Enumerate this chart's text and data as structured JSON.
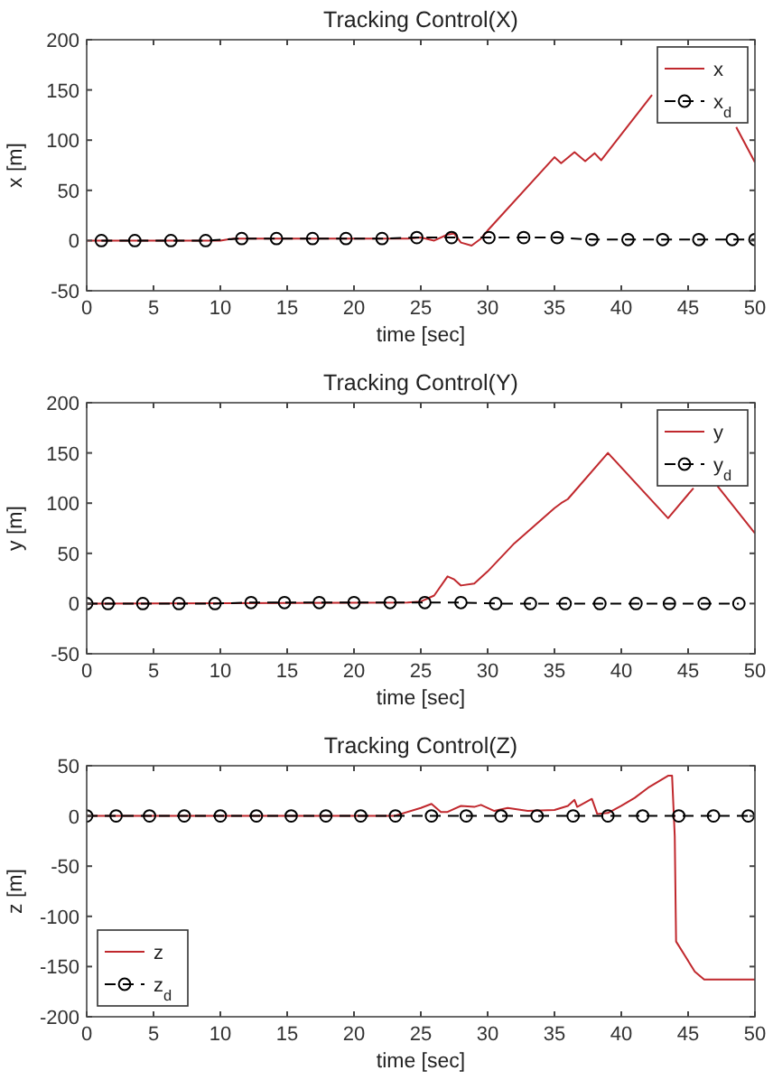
{
  "chart_data": [
    {
      "type": "line",
      "title": "Tracking Control(X)",
      "xlabel": "time [sec]",
      "ylabel": "x [m]",
      "xlim": [
        0,
        50
      ],
      "ylim": [
        -50,
        200
      ],
      "xticks": [
        0,
        5,
        10,
        15,
        20,
        25,
        30,
        35,
        40,
        45,
        50
      ],
      "yticks": [
        -50,
        0,
        50,
        100,
        150,
        200
      ],
      "legend": "top right",
      "series": [
        {
          "name": "x",
          "color": "#c0282d",
          "marker": "none",
          "line_style": "solid",
          "x": [
            0,
            10,
            11,
            24,
            25,
            26,
            27,
            27.5,
            28,
            28.8,
            29.5,
            30,
            35,
            35.5,
            36.5,
            37.3,
            38,
            38.5,
            42.3,
            45,
            48.6,
            50
          ],
          "values": [
            0,
            0,
            2,
            2,
            3,
            0,
            6,
            7,
            -2,
            -5,
            2,
            10,
            83,
            77,
            88,
            79,
            87,
            80,
            145,
            null,
            113,
            78
          ]
        },
        {
          "name": "x$_{d}$",
          "color": "#000000",
          "marker": "circle",
          "line_style": "dashed",
          "x": [
            1.1,
            3.6,
            6.3,
            8.9,
            11.6,
            14.2,
            16.9,
            19.4,
            22.1,
            24.7,
            27.3,
            30.1,
            32.7,
            35.2,
            37.8,
            40.5,
            43.1,
            45.8,
            48.3,
            50
          ],
          "values": [
            0,
            0,
            0,
            0,
            2,
            2,
            2,
            2,
            2,
            3,
            3,
            3,
            3,
            3,
            1,
            1,
            1,
            1,
            1,
            1
          ]
        }
      ]
    },
    {
      "type": "line",
      "title": "Tracking Control(Y)",
      "xlabel": "time [sec]",
      "ylabel": "y [m]",
      "xlim": [
        0,
        50
      ],
      "ylim": [
        -50,
        200
      ],
      "xticks": [
        0,
        5,
        10,
        15,
        20,
        25,
        30,
        35,
        40,
        45,
        50
      ],
      "yticks": [
        -50,
        0,
        50,
        100,
        150,
        200
      ],
      "legend": "top right",
      "series": [
        {
          "name": "y",
          "color": "#c0282d",
          "marker": "none",
          "line_style": "solid",
          "x": [
            0,
            24,
            25,
            26,
            27,
            27.5,
            28,
            29,
            30,
            32,
            35,
            35.5,
            36,
            39,
            43.5,
            45.4,
            46.2,
            47.2,
            50
          ],
          "values": [
            0,
            1,
            2,
            8,
            27,
            24,
            18,
            20,
            32,
            60,
            95,
            100,
            104,
            150,
            85,
            115,
            null,
            117,
            70
          ]
        },
        {
          "name": "y$_{d}$",
          "color": "#000000",
          "marker": "circle",
          "line_style": "dashed",
          "x": [
            0,
            1.6,
            4.2,
            6.9,
            9.6,
            12.3,
            14.8,
            17.4,
            20,
            22.7,
            25.3,
            28,
            30.6,
            33.2,
            35.8,
            38.4,
            41.1,
            43.6,
            46.2,
            48.8
          ],
          "values": [
            0,
            0,
            0,
            0,
            0,
            1,
            1,
            1,
            1,
            1,
            1,
            1,
            0,
            0,
            0,
            0,
            0,
            0,
            0,
            0
          ]
        }
      ]
    },
    {
      "type": "line",
      "title": "Tracking Control(Z)",
      "xlabel": "time [sec]",
      "ylabel": "z [m]",
      "xlim": [
        0,
        50
      ],
      "ylim": [
        -200,
        50
      ],
      "xticks": [
        0,
        5,
        10,
        15,
        20,
        25,
        30,
        35,
        40,
        45,
        50
      ],
      "yticks": [
        -200,
        -150,
        -100,
        -50,
        0,
        50
      ],
      "legend": "bottom left",
      "series": [
        {
          "name": "z",
          "color": "#c0282d",
          "marker": "none",
          "line_style": "solid",
          "x": [
            0,
            23,
            25,
            25.8,
            26.5,
            27,
            28,
            29,
            29.5,
            30.5,
            31.5,
            33,
            35,
            36,
            36.5,
            36.7,
            37.8,
            38.2,
            39,
            40,
            41,
            42,
            43.5,
            43.8,
            44,
            44.1,
            44.8,
            45.5,
            46.2,
            50
          ],
          "values": [
            0,
            0,
            8,
            12,
            4,
            4,
            10,
            9,
            11,
            5,
            8,
            5,
            6,
            10,
            16,
            9,
            17,
            2,
            3,
            10,
            18,
            28,
            40,
            40,
            -20,
            -125,
            -140,
            -155,
            -163,
            -163
          ]
        },
        {
          "name": "z$_{d}$",
          "color": "#000000",
          "marker": "circle",
          "line_style": "dashed",
          "x": [
            0,
            2.2,
            4.7,
            7.3,
            10,
            12.7,
            15.3,
            17.9,
            20.5,
            23.1,
            25.8,
            28.4,
            31,
            33.7,
            36.4,
            39,
            41.6,
            44.3,
            46.9,
            49.5
          ],
          "values": [
            0,
            0,
            0,
            0,
            0,
            0,
            0,
            0,
            0,
            0,
            0,
            0,
            0,
            0,
            0,
            0,
            0,
            0,
            0,
            0
          ]
        }
      ]
    }
  ]
}
